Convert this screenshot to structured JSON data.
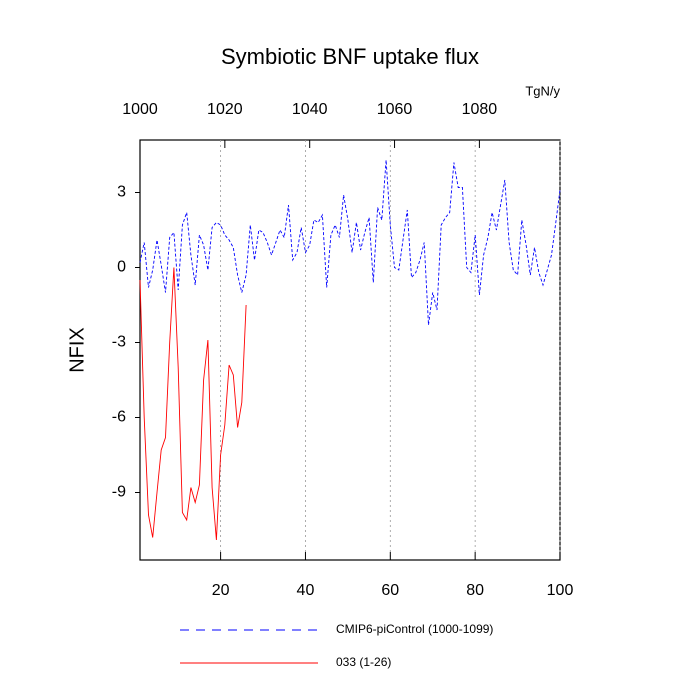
{
  "chart_data": {
    "type": "line",
    "title": "Symbiotic BNF uptake flux",
    "y_label": "NFIX",
    "x2_unit": "TgN/y",
    "xlim": [
      1,
      100
    ],
    "xticks": [
      20,
      40,
      60,
      80,
      100
    ],
    "x2lim": [
      1000,
      1099
    ],
    "x2ticks": [
      1000,
      1020,
      1040,
      1060,
      1080
    ],
    "ylim": [
      -11.7,
      5.1
    ],
    "yticks": [
      3,
      0,
      -3,
      -6,
      -9
    ],
    "grid": true,
    "series": [
      {
        "name": "CMIP6-piControl (1000-1099)",
        "color": "#0000ff",
        "dash": true,
        "x": [
          1,
          2,
          3,
          4,
          5,
          6,
          7,
          8,
          9,
          10,
          11,
          12,
          13,
          14,
          15,
          16,
          17,
          18,
          19,
          20,
          21,
          22,
          23,
          24,
          25,
          26,
          27,
          28,
          29,
          30,
          31,
          32,
          33,
          34,
          35,
          36,
          37,
          38,
          39,
          40,
          41,
          42,
          43,
          44,
          45,
          46,
          47,
          48,
          49,
          50,
          51,
          52,
          53,
          54,
          55,
          56,
          57,
          58,
          59,
          60,
          61,
          62,
          63,
          64,
          65,
          66,
          67,
          68,
          69,
          70,
          71,
          72,
          73,
          74,
          75,
          76,
          77,
          78,
          79,
          80,
          81,
          82,
          83,
          84,
          85,
          86,
          87,
          88,
          89,
          90,
          91,
          92,
          93,
          94,
          95,
          96,
          97,
          98,
          99,
          100
        ],
        "values": [
          0.2,
          1.0,
          -0.8,
          -0.1,
          1.1,
          0.1,
          -1.0,
          1.2,
          1.4,
          -0.9,
          1.7,
          2.2,
          0.5,
          -0.7,
          1.3,
          0.9,
          -0.1,
          1.6,
          1.8,
          1.7,
          1.3,
          1.1,
          0.8,
          -0.3,
          -1.0,
          -0.3,
          1.7,
          0.3,
          1.5,
          1.4,
          1.0,
          0.5,
          1.0,
          1.5,
          1.2,
          2.5,
          0.3,
          0.6,
          1.6,
          0.6,
          0.9,
          1.9,
          1.8,
          2.1,
          -0.8,
          1.3,
          1.7,
          1.2,
          2.9,
          1.9,
          0.6,
          1.8,
          0.7,
          1.4,
          2.0,
          -0.6,
          2.4,
          1.9,
          4.3,
          1.7,
          0.0,
          -0.1,
          1.1,
          2.3,
          -0.4,
          -0.2,
          0.3,
          1.0,
          -2.3,
          -1.0,
          -1.7,
          1.7,
          2.0,
          2.2,
          4.2,
          3.2,
          3.2,
          0.0,
          -0.2,
          1.3,
          -1.1,
          0.5,
          1.2,
          2.2,
          1.5,
          2.5,
          3.5,
          1.0,
          -0.1,
          -0.3,
          1.9,
          0.9,
          -0.3,
          0.8,
          -0.2,
          -0.7,
          -0.1,
          0.5,
          1.8,
          3.1
        ]
      },
      {
        "name": "033 (1-26)",
        "color": "#ff0000",
        "dash": false,
        "x": [
          1,
          2,
          3,
          4,
          5,
          6,
          7,
          8,
          9,
          10,
          11,
          12,
          13,
          14,
          15,
          16,
          17,
          18,
          19,
          20,
          21,
          22,
          23,
          24,
          25,
          26
        ],
        "values": [
          -0.5,
          -6.0,
          -9.9,
          -10.8,
          -9.0,
          -7.3,
          -6.8,
          -3.0,
          0.0,
          -4.0,
          -9.8,
          -10.1,
          -8.8,
          -9.4,
          -8.7,
          -4.5,
          -2.9,
          -8.8,
          -10.9,
          -7.5,
          -6.3,
          -3.9,
          -4.3,
          -6.4,
          -5.4,
          -1.5
        ]
      }
    ]
  }
}
